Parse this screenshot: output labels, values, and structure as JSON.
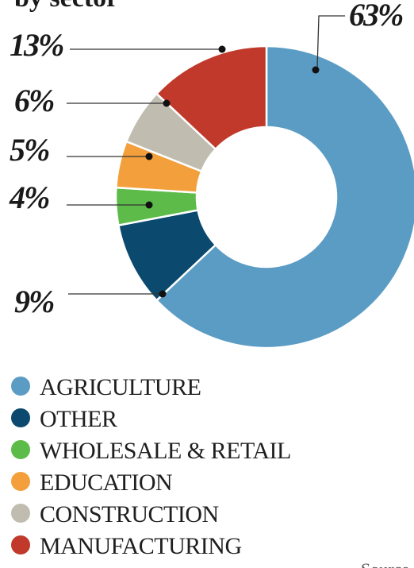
{
  "header": {
    "subtitle_fragment": "by sector"
  },
  "footer": {
    "source_fragment": "Source"
  },
  "chart_data": {
    "type": "pie",
    "donut": true,
    "start_angle_deg": 0,
    "direction": "clockwise",
    "slices": [
      {
        "key": "agriculture",
        "label": "AGRICULTURE",
        "value": 63,
        "value_label": "63%",
        "color": "#5b9cc4"
      },
      {
        "key": "other",
        "label": "OTHER",
        "value": 9,
        "value_label": "9%",
        "color": "#0b4a6e"
      },
      {
        "key": "wholesale-retail",
        "label": "WHOLESALE & RETAIL",
        "value": 4,
        "value_label": "4%",
        "color": "#5dbb4a"
      },
      {
        "key": "education",
        "label": "EDUCATION",
        "value": 5,
        "value_label": "5%",
        "color": "#f3a03c"
      },
      {
        "key": "construction",
        "label": "CONSTRUCTION",
        "value": 6,
        "value_label": "6%",
        "color": "#c0bdb0"
      },
      {
        "key": "manufacturing",
        "label": "MANUFACTURING",
        "value": 13,
        "value_label": "13%",
        "color": "#c0392b"
      }
    ],
    "legend_placement": "bottom-left"
  }
}
